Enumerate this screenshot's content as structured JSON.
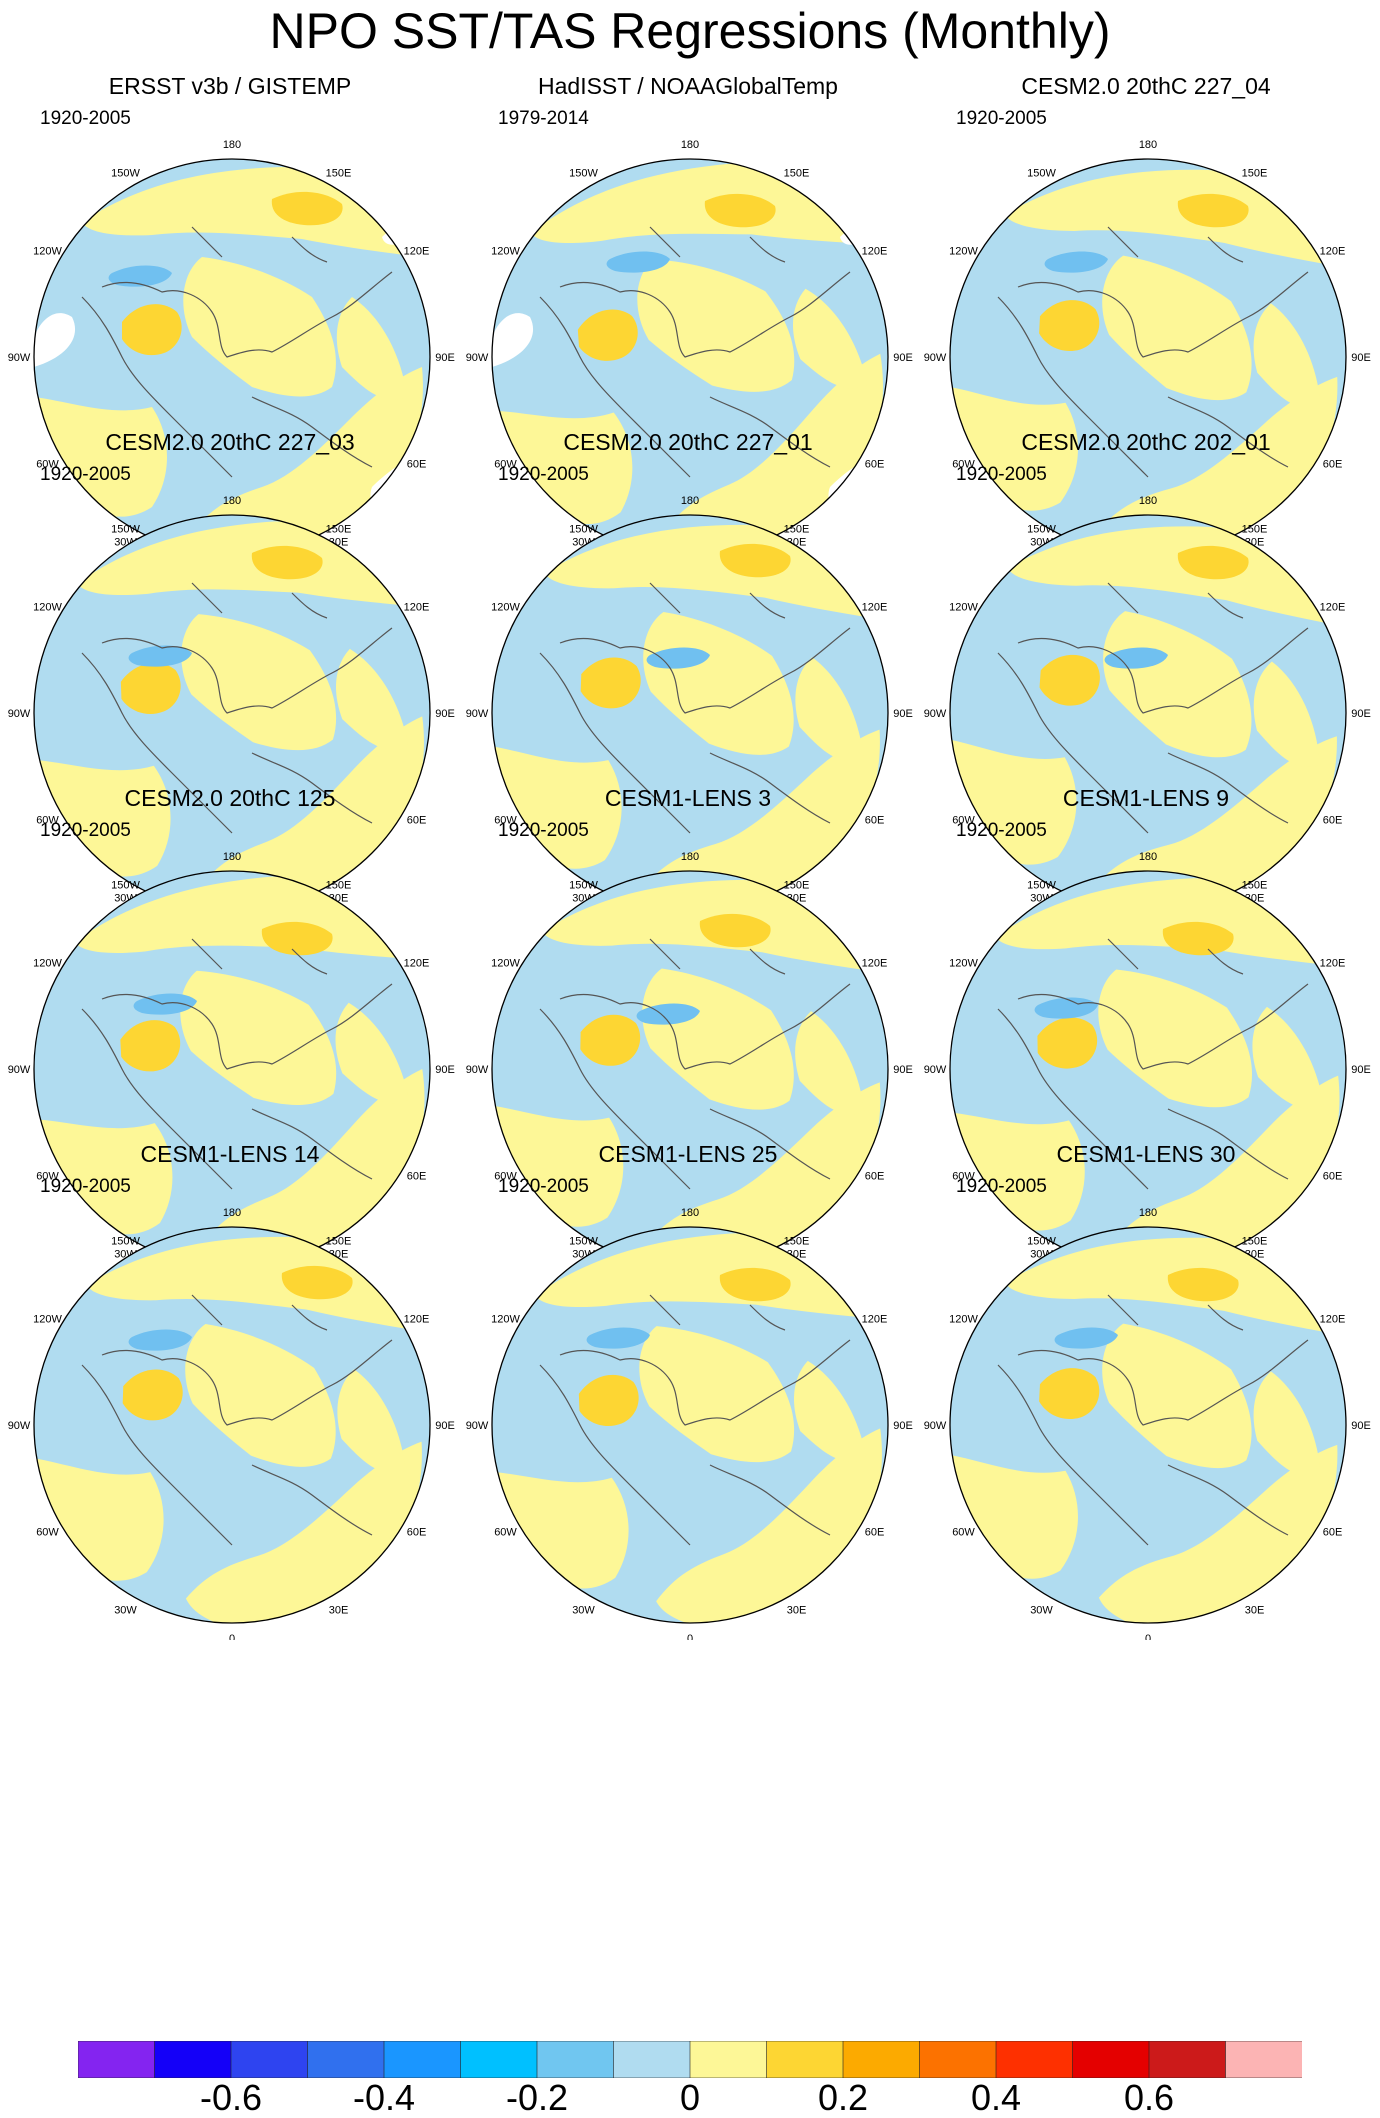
{
  "title": "NPO SST/TAS Regressions (Monthly)",
  "lon_labels": [
    "180",
    "150E",
    "120E",
    "90E",
    "60E",
    "30E",
    "0",
    "30W",
    "60W",
    "90W",
    "120W",
    "150W"
  ],
  "colors": {
    "land_outline": "#555555",
    "missing": "#ffffff",
    "yellow_light": "#fdf797",
    "yellow_mid": "#fdd633",
    "blue_light": "#b0dcf0",
    "blue_mid": "#70c0f0"
  },
  "panels": [
    {
      "title": "ERSST v3b / GISTEMP",
      "period": "1920-2005",
      "missing_data": true
    },
    {
      "title": "HadISST / NOAAGlobalTemp",
      "period": "1979-2014",
      "missing_data": true
    },
    {
      "title": "CESM2.0 20thC 227_04",
      "period": "1920-2005",
      "missing_data": false
    },
    {
      "title": "CESM2.0 20thC 227_03",
      "period": "1920-2005",
      "missing_data": false
    },
    {
      "title": "CESM2.0 20thC 227_01",
      "period": "1920-2005",
      "missing_data": false
    },
    {
      "title": "CESM2.0 20thC 202_01",
      "period": "1920-2005",
      "missing_data": false
    },
    {
      "title": "CESM2.0 20thC 125",
      "period": "1920-2005",
      "missing_data": false
    },
    {
      "title": "CESM1-LENS 3",
      "period": "1920-2005",
      "missing_data": false
    },
    {
      "title": "CESM1-LENS 9",
      "period": "1920-2005",
      "missing_data": false
    },
    {
      "title": "CESM1-LENS 14",
      "period": "1920-2005",
      "missing_data": false
    },
    {
      "title": "CESM1-LENS 25",
      "period": "1920-2005",
      "missing_data": false
    },
    {
      "title": "CESM1-LENS 30",
      "period": "1920-2005",
      "missing_data": false
    }
  ],
  "colorbar": {
    "colors": [
      "#8424f0",
      "#1400f8",
      "#2e44f0",
      "#3070ee",
      "#1a96ff",
      "#00c0ff",
      "#70c6f0",
      "#b0dcf0",
      "#fdf797",
      "#fdd633",
      "#fcaa00",
      "#fc7200",
      "#fe3000",
      "#e40000",
      "#cc1a1a",
      "#fcb4b4"
    ],
    "levels": [
      -0.7,
      -0.6,
      -0.5,
      -0.4,
      -0.3,
      -0.2,
      -0.1,
      0,
      0.1,
      0.2,
      0.3,
      0.4,
      0.5,
      0.6,
      0.7
    ],
    "labels": [
      {
        "level": -0.6,
        "text": "-0.6"
      },
      {
        "level": -0.4,
        "text": "-0.4"
      },
      {
        "level": -0.2,
        "text": "-0.2"
      },
      {
        "level": 0,
        "text": "0"
      },
      {
        "level": 0.2,
        "text": "0.2"
      },
      {
        "level": 0.4,
        "text": "0.4"
      },
      {
        "level": 0.6,
        "text": "0.6"
      }
    ]
  }
}
